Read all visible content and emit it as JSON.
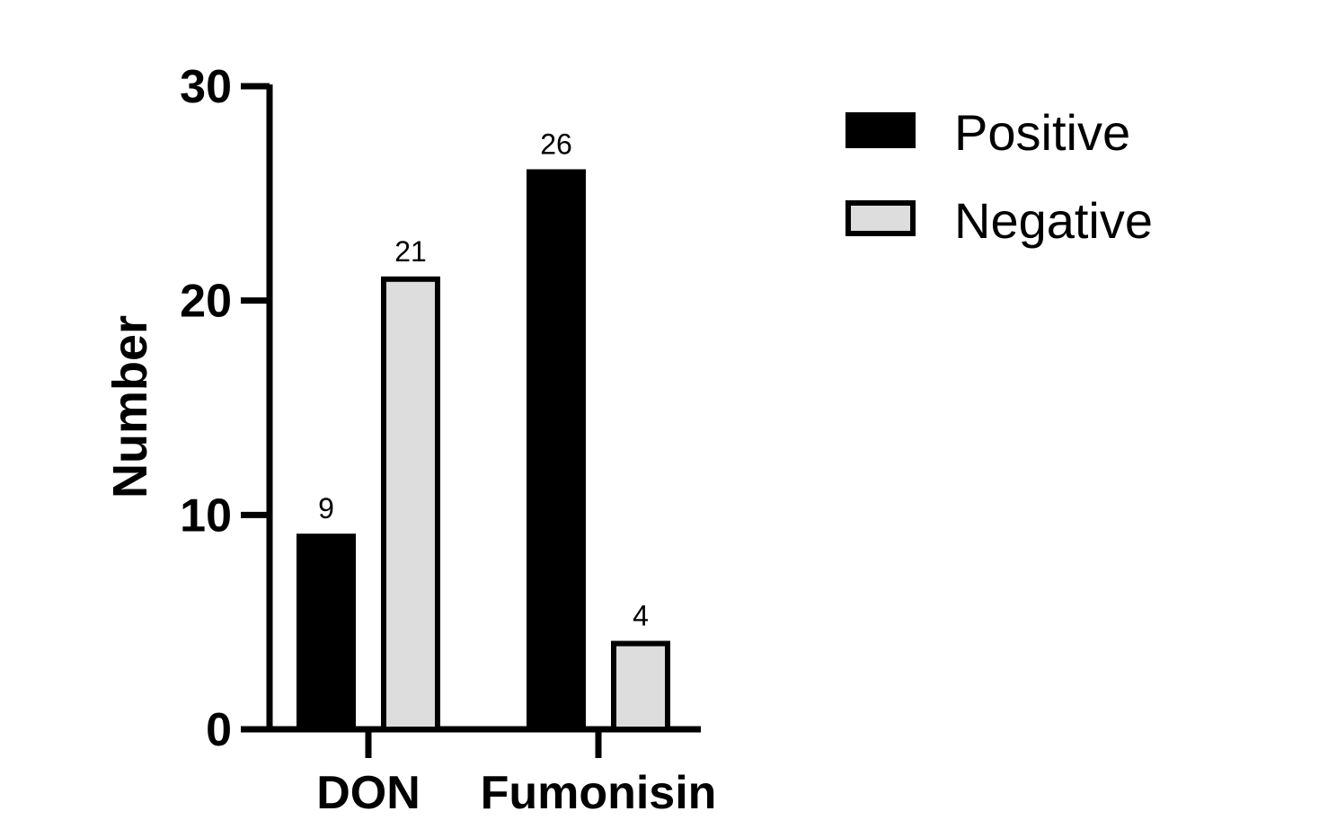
{
  "chart_data": {
    "type": "bar",
    "categories": [
      "DON",
      "Fumonisin"
    ],
    "series": [
      {
        "name": "Positive",
        "values": [
          9,
          26
        ],
        "color": "#000000"
      },
      {
        "name": "Negative",
        "values": [
          21,
          4
        ],
        "color": "#dddddd"
      }
    ],
    "title": "",
    "xlabel": "",
    "ylabel": "Number",
    "ylim": [
      0,
      30
    ],
    "yticks": [
      "0",
      "10",
      "20",
      "30"
    ],
    "grid": false,
    "legend": "top-right",
    "data_labels": [
      "9",
      "26",
      "21",
      "4"
    ]
  }
}
